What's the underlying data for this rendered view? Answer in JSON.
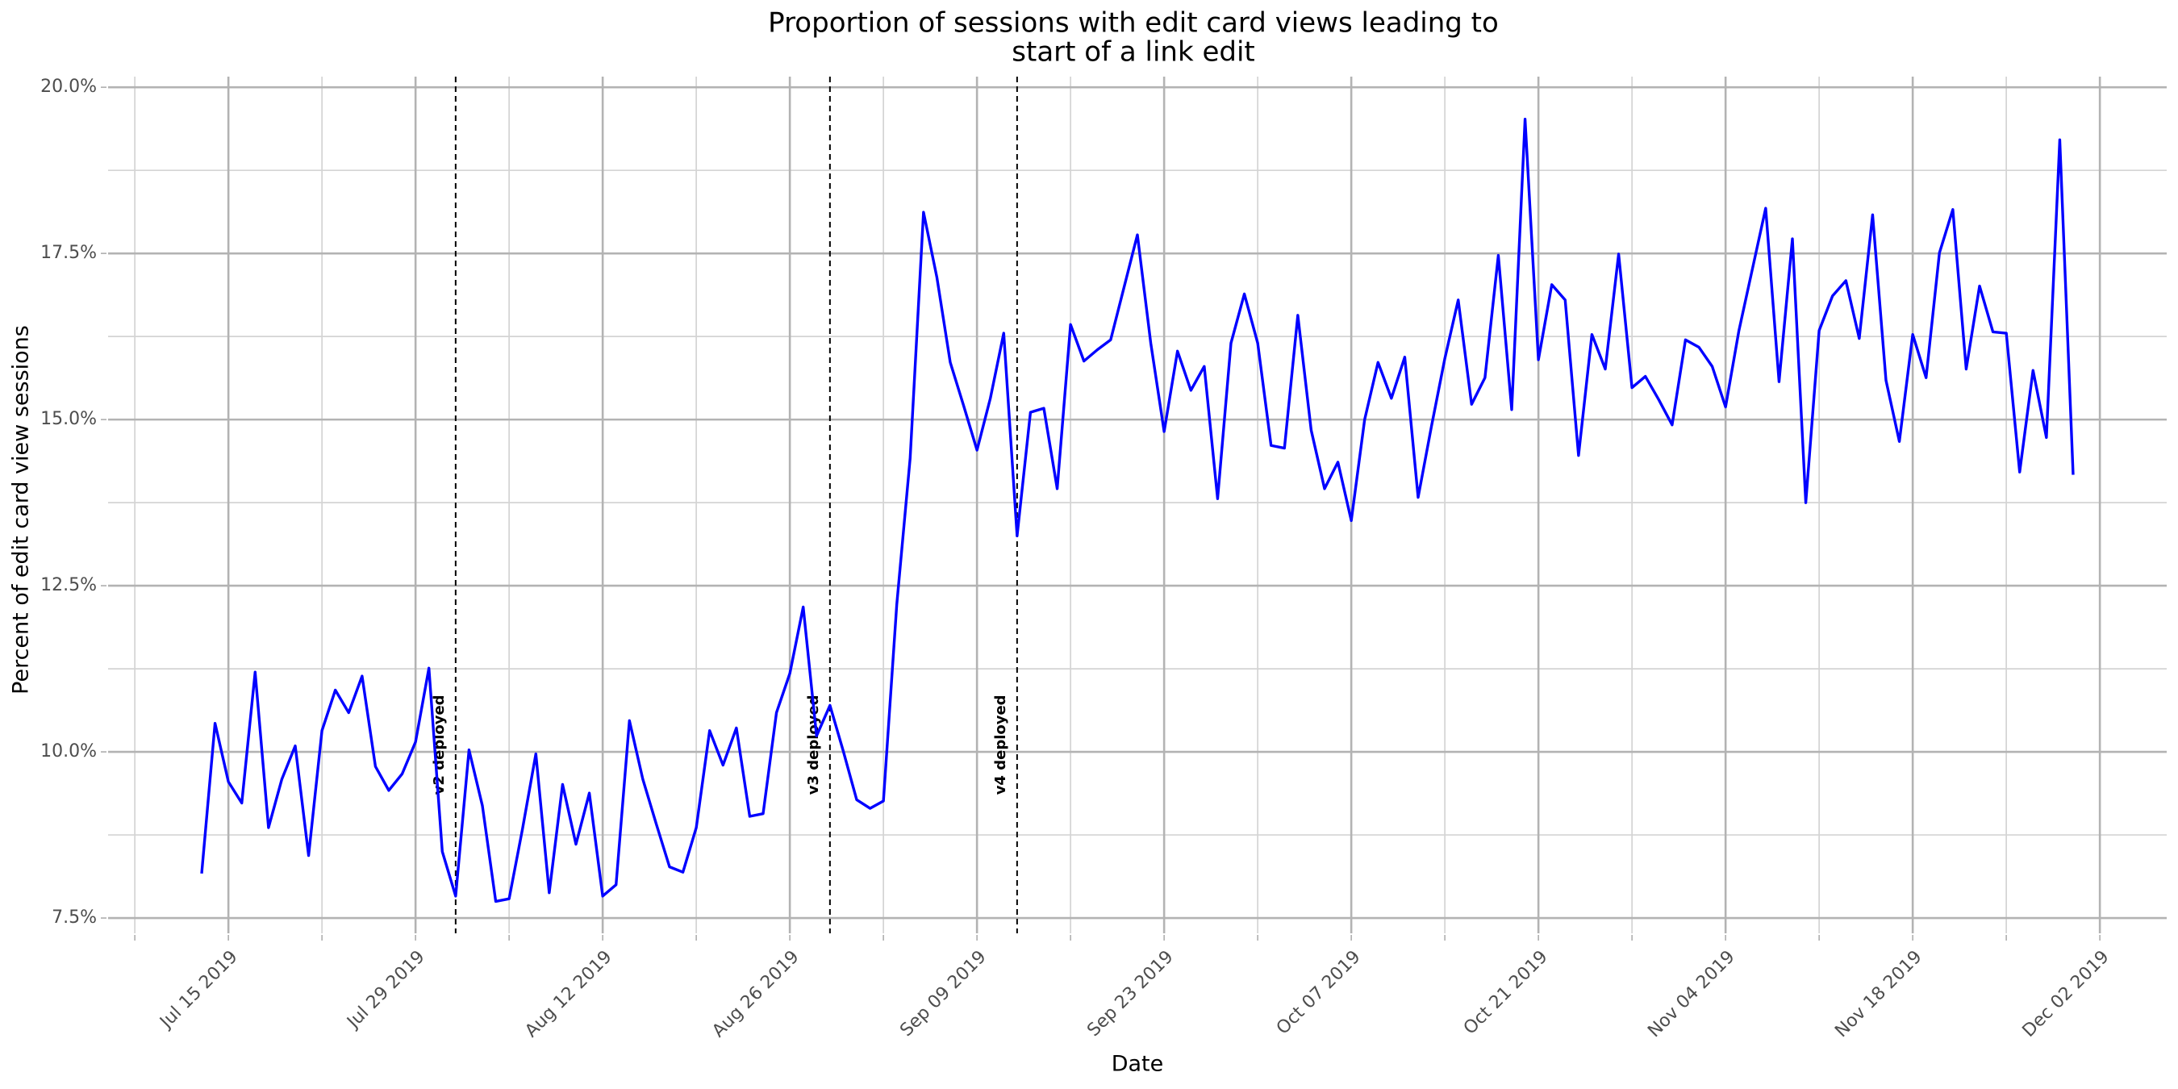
{
  "chart_data": {
    "type": "line",
    "title": [
      "Proportion of sessions with edit card views leading to",
      "start of a link edit"
    ],
    "x_label": "Date",
    "y_label": "Percent of edit card view sessions",
    "color": "#0000ff",
    "grid": true,
    "xlim": [
      "2019-07-06",
      "2019-12-07"
    ],
    "ylim": [
      7.27,
      20.16
    ],
    "xticks": [
      {
        "value": "2019-07-15",
        "label": "Jul 15 2019"
      },
      {
        "value": "2019-07-29",
        "label": "Jul 29 2019"
      },
      {
        "value": "2019-08-12",
        "label": "Aug 12 2019"
      },
      {
        "value": "2019-08-26",
        "label": "Aug 26 2019"
      },
      {
        "value": "2019-09-09",
        "label": "Sep 09 2019"
      },
      {
        "value": "2019-09-23",
        "label": "Sep 23 2019"
      },
      {
        "value": "2019-10-07",
        "label": "Oct 07 2019"
      },
      {
        "value": "2019-10-21",
        "label": "Oct 21 2019"
      },
      {
        "value": "2019-11-04",
        "label": "Nov 04 2019"
      },
      {
        "value": "2019-11-18",
        "label": "Nov 18 2019"
      },
      {
        "value": "2019-12-02",
        "label": "Dec 02 2019"
      }
    ],
    "yticks": [
      {
        "value": 7.5,
        "label": "7.5%"
      },
      {
        "value": 10,
        "label": "10.0%"
      },
      {
        "value": 12.5,
        "label": "12.5%"
      },
      {
        "value": 15,
        "label": "15.0%"
      },
      {
        "value": 17.5,
        "label": "17.5%"
      },
      {
        "value": 20,
        "label": "20.0%"
      }
    ],
    "annotations": [
      {
        "x": "2019-08-01",
        "label": "v2 deployed"
      },
      {
        "x": "2019-08-29",
        "label": "v3 deployed"
      },
      {
        "x": "2019-09-12",
        "label": "v4 deployed"
      }
    ],
    "x": [
      "2019-07-13",
      "2019-07-14",
      "2019-07-15",
      "2019-07-16",
      "2019-07-17",
      "2019-07-18",
      "2019-07-19",
      "2019-07-20",
      "2019-07-21",
      "2019-07-22",
      "2019-07-23",
      "2019-07-24",
      "2019-07-25",
      "2019-07-26",
      "2019-07-27",
      "2019-07-28",
      "2019-07-29",
      "2019-07-30",
      "2019-07-31",
      "2019-08-01",
      "2019-08-02",
      "2019-08-03",
      "2019-08-04",
      "2019-08-05",
      "2019-08-06",
      "2019-08-07",
      "2019-08-08",
      "2019-08-09",
      "2019-08-10",
      "2019-08-11",
      "2019-08-12",
      "2019-08-13",
      "2019-08-14",
      "2019-08-15",
      "2019-08-16",
      "2019-08-17",
      "2019-08-18",
      "2019-08-19",
      "2019-08-20",
      "2019-08-21",
      "2019-08-22",
      "2019-08-23",
      "2019-08-24",
      "2019-08-25",
      "2019-08-26",
      "2019-08-27",
      "2019-08-28",
      "2019-08-29",
      "2019-08-30",
      "2019-08-31",
      "2019-09-01",
      "2019-09-02",
      "2019-09-03",
      "2019-09-04",
      "2019-09-05",
      "2019-09-06",
      "2019-09-07",
      "2019-09-08",
      "2019-09-09",
      "2019-09-10",
      "2019-09-11",
      "2019-09-12",
      "2019-09-13",
      "2019-09-14",
      "2019-09-15",
      "2019-09-16",
      "2019-09-17",
      "2019-09-18",
      "2019-09-19",
      "2019-09-20",
      "2019-09-21",
      "2019-09-22",
      "2019-09-23",
      "2019-09-24",
      "2019-09-25",
      "2019-09-26",
      "2019-09-27",
      "2019-09-28",
      "2019-09-29",
      "2019-09-30",
      "2019-10-01",
      "2019-10-02",
      "2019-10-03",
      "2019-10-04",
      "2019-10-05",
      "2019-10-06",
      "2019-10-07",
      "2019-10-08",
      "2019-10-09",
      "2019-10-10",
      "2019-10-11",
      "2019-10-12",
      "2019-10-13",
      "2019-10-14",
      "2019-10-15",
      "2019-10-16",
      "2019-10-17",
      "2019-10-18",
      "2019-10-19",
      "2019-10-20",
      "2019-10-21",
      "2019-10-22",
      "2019-10-23",
      "2019-10-24",
      "2019-10-25",
      "2019-10-26",
      "2019-10-27",
      "2019-10-28",
      "2019-10-29",
      "2019-10-30",
      "2019-10-31",
      "2019-11-01",
      "2019-11-02",
      "2019-11-03",
      "2019-11-04",
      "2019-11-05",
      "2019-11-06",
      "2019-11-07",
      "2019-11-08",
      "2019-11-09",
      "2019-11-10",
      "2019-11-11",
      "2019-11-12",
      "2019-11-13",
      "2019-11-14",
      "2019-11-15",
      "2019-11-16",
      "2019-11-17",
      "2019-11-18",
      "2019-11-19",
      "2019-11-20",
      "2019-11-21",
      "2019-11-22",
      "2019-11-23",
      "2019-11-24",
      "2019-11-25",
      "2019-11-26",
      "2019-11-27",
      "2019-11-28",
      "2019-11-29",
      "2019-11-30"
    ],
    "values": [
      8.17,
      10.43,
      9.55,
      9.23,
      11.2,
      8.86,
      9.59,
      10.09,
      8.44,
      10.32,
      10.93,
      10.59,
      11.14,
      9.78,
      9.42,
      9.67,
      10.15,
      11.26,
      8.5,
      7.83,
      10.03,
      9.19,
      7.75,
      7.79,
      8.84,
      9.97,
      7.88,
      9.51,
      8.61,
      9.38,
      7.83,
      8.0,
      10.47,
      9.59,
      8.92,
      8.27,
      8.19,
      8.86,
      10.32,
      9.8,
      10.36,
      9.03,
      9.07,
      10.59,
      11.18,
      12.18,
      10.24,
      10.7,
      10.01,
      9.28,
      9.15,
      9.26,
      12.22,
      14.42,
      18.12,
      17.14,
      15.86,
      15.21,
      14.54,
      15.32,
      16.3,
      13.25,
      15.11,
      15.17,
      13.96,
      16.43,
      15.88,
      16.05,
      16.2,
      16.99,
      17.78,
      16.15,
      14.82,
      16.03,
      15.44,
      15.8,
      13.81,
      16.15,
      16.89,
      16.15,
      14.61,
      14.57,
      16.57,
      14.84,
      13.96,
      14.36,
      13.48,
      15.0,
      15.86,
      15.32,
      15.94,
      13.83,
      14.9,
      15.92,
      16.8,
      15.23,
      15.63,
      17.47,
      15.15,
      19.52,
      15.9,
      17.03,
      16.8,
      14.46,
      16.28,
      15.76,
      17.49,
      15.48,
      15.65,
      15.3,
      14.92,
      16.2,
      16.09,
      15.8,
      15.19,
      16.34,
      17.26,
      18.18,
      15.57,
      17.72,
      13.75,
      16.34,
      16.86,
      17.09,
      16.22,
      18.08,
      15.59,
      14.67,
      16.28,
      15.63,
      17.51,
      18.16,
      15.76,
      17.01,
      16.32,
      16.3,
      14.21,
      15.74,
      14.73,
      19.21,
      14.17
    ]
  }
}
